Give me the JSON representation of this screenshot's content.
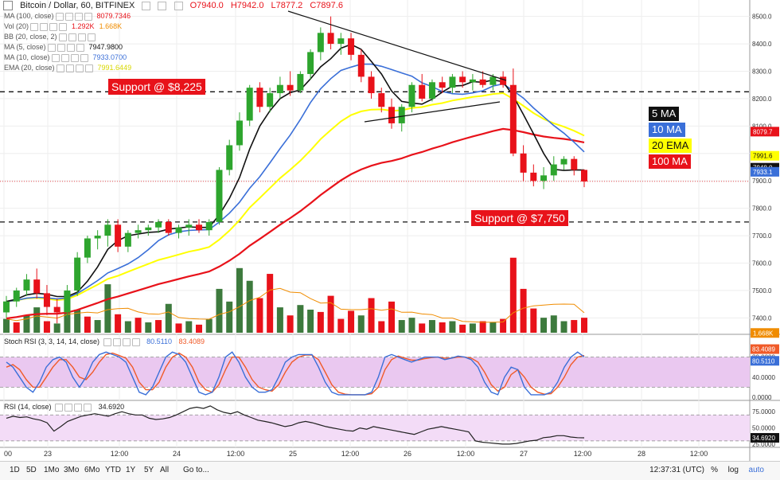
{
  "header": {
    "title": "Bitcoin / Dollar, 60, BITFINEX",
    "open": "O7940.0",
    "high": "H7942.0",
    "low": "L7877.2",
    "close": "C7897.6"
  },
  "indicators": [
    {
      "label": "MA (100, close)",
      "value": "8079.7346",
      "value2": "",
      "color": "#e8121a",
      "color2": ""
    },
    {
      "label": "Vol (20)",
      "value": "1.292K",
      "value2": "1.668K",
      "color": "#e8121a",
      "color2": "#f08c00"
    },
    {
      "label": "BB (20, close, 2)",
      "value": "",
      "value2": "",
      "color": "",
      "color2": ""
    },
    {
      "label": "MA (5, close)",
      "value": "7947.9800",
      "value2": "",
      "color": "#111111",
      "color2": ""
    },
    {
      "label": "MA (10, close)",
      "value": "7933.0700",
      "value2": "",
      "color": "#3a6fd8",
      "color2": ""
    },
    {
      "label": "EMA (20, close)",
      "value": "7991.6449",
      "value2": "",
      "color": "#d8d800",
      "color2": ""
    }
  ],
  "annotations": {
    "support_upper": "Support @ $8,225",
    "support_lower": "Support @ $7,750"
  },
  "legend": [
    {
      "label": "5 MA",
      "bg": "#111111",
      "fg": "#ffffff"
    },
    {
      "label": "10 MA",
      "bg": "#3a6fd8",
      "fg": "#ffffff"
    },
    {
      "label": "20 EMA",
      "bg": "#ffff00",
      "fg": "#111111"
    },
    {
      "label": "100 MA",
      "bg": "#e8121a",
      "fg": "#ffffff"
    }
  ],
  "price_axis": {
    "ticks": [
      "8500.0",
      "8400.0",
      "8300.0",
      "8200.0",
      "8100.0",
      "8000.0",
      "7900.0",
      "7800.0",
      "7700.0",
      "7600.0",
      "7500.0",
      "7400.0"
    ],
    "badges": [
      {
        "text": "8079.7",
        "price": 8079.7,
        "bg": "#e8121a",
        "fg": "#ffffff"
      },
      {
        "text": "7991.6",
        "price": 7991.6,
        "bg": "#ffff00",
        "fg": "#111111"
      },
      {
        "text": "7948.0",
        "price": 7948.0,
        "bg": "#111111",
        "fg": "#ffffff"
      },
      {
        "text": "7933.1",
        "price": 7933.1,
        "bg": "#3a6fd8",
        "fg": "#ffffff"
      },
      {
        "text": "1.668K",
        "price": 7345,
        "bg": "#f08c00",
        "fg": "#ffffff"
      }
    ]
  },
  "stoch_rsi": {
    "label": "Stoch RSI (3, 3, 14, 14, close)",
    "k": "80.5110",
    "d": "83.4089",
    "ticks": [
      "80.0000",
      "40.0000",
      "0.0000"
    ],
    "k_series": [
      70,
      60,
      40,
      20,
      10,
      30,
      60,
      75,
      80,
      70,
      40,
      20,
      40,
      70,
      85,
      90,
      85,
      80,
      70,
      40,
      10,
      5,
      20,
      50,
      80,
      90,
      85,
      70,
      40,
      10,
      5,
      10,
      40,
      80,
      90,
      70,
      40,
      20,
      10,
      10,
      15,
      40,
      70,
      80,
      85,
      85,
      85,
      60,
      30,
      10,
      5,
      5,
      5,
      5,
      5,
      10,
      40,
      80,
      85,
      80,
      75,
      70,
      75,
      80,
      80,
      80,
      75,
      78,
      82,
      80,
      75,
      60,
      30,
      10,
      5,
      40,
      60,
      55,
      20,
      5,
      5,
      5,
      10,
      30,
      60,
      80,
      90,
      80.5
    ],
    "d_series": [
      60,
      65,
      55,
      35,
      20,
      20,
      40,
      60,
      75,
      75,
      60,
      40,
      35,
      50,
      70,
      85,
      88,
      83,
      78,
      60,
      30,
      15,
      15,
      30,
      60,
      80,
      88,
      80,
      60,
      30,
      15,
      10,
      25,
      55,
      80,
      80,
      60,
      35,
      20,
      15,
      12,
      25,
      50,
      70,
      80,
      84,
      84,
      75,
      50,
      25,
      10,
      6,
      5,
      5,
      5,
      7,
      20,
      55,
      75,
      82,
      78,
      74,
      74,
      77,
      79,
      80,
      78,
      78,
      80,
      80,
      78,
      70,
      50,
      25,
      12,
      20,
      45,
      55,
      40,
      20,
      10,
      6,
      7,
      20,
      40,
      65,
      80,
      83.4
    ]
  },
  "rsi": {
    "label": "RSI (14, close)",
    "value": "34.6920",
    "ticks": [
      "75.0000",
      "50.0000",
      "34.6920",
      "25.0000"
    ],
    "series": [
      65,
      68,
      66,
      67,
      64,
      62,
      58,
      45,
      52,
      60,
      64,
      68,
      70,
      72,
      70,
      68,
      72,
      75,
      72,
      70,
      70,
      65,
      63,
      64,
      66,
      70,
      75,
      80,
      82,
      80,
      84,
      78,
      74,
      72,
      75,
      70,
      66,
      62,
      60,
      58,
      55,
      52,
      54,
      58,
      60,
      58,
      55,
      52,
      50,
      48,
      46,
      45,
      50,
      48,
      52,
      50,
      48,
      46,
      44,
      42,
      40,
      44,
      48,
      50,
      52,
      50,
      48,
      46,
      44,
      30,
      28,
      27,
      26,
      25,
      25,
      26,
      28,
      30,
      31,
      35,
      36,
      38,
      38,
      36,
      35,
      34.7
    ]
  },
  "time_axis": [
    "00",
    "23",
    "12:00",
    "24",
    "12:00",
    "25",
    "12:00",
    "26",
    "12:00",
    "27",
    "12:00",
    "28",
    "12:00"
  ],
  "bottom_bar": {
    "ranges": [
      "1D",
      "5D",
      "1Mo",
      "3Mo",
      "6Mo",
      "YTD",
      "1Y",
      "5Y",
      "All"
    ],
    "goto": "Go to...",
    "clock": "12:37:31 (UTC)",
    "pct": "%",
    "log": "log",
    "auto": "auto"
  },
  "colors": {
    "up": "#2ea52e",
    "down": "#e8121a",
    "ma5": "#111111",
    "ma10": "#3a6fd8",
    "ema20": "#ffff00",
    "ma100": "#e8121a",
    "vol_up": "#3d7a3d",
    "vol_down": "#e8121a",
    "stoch_k": "#3a6fd8",
    "stoch_d": "#f05a28",
    "stoch_fill": "#eac8f0",
    "rsi_fill": "#f3dcf7"
  },
  "chart_data": {
    "type": "candlestick",
    "title": "Bitcoin / Dollar, 60, BITFINEX",
    "ylim": [
      7340,
      8560
    ],
    "support_levels": [
      8225,
      7750
    ],
    "ohlc": [
      [
        7420,
        7480,
        7400,
        7460
      ],
      [
        7460,
        7510,
        7440,
        7500
      ],
      [
        7500,
        7560,
        7480,
        7540
      ],
      [
        7540,
        7580,
        7470,
        7490
      ],
      [
        7490,
        7520,
        7410,
        7440
      ],
      [
        7440,
        7470,
        7380,
        7420
      ],
      [
        7420,
        7520,
        7400,
        7500
      ],
      [
        7500,
        7640,
        7480,
        7620
      ],
      [
        7620,
        7700,
        7600,
        7690
      ],
      [
        7690,
        7720,
        7650,
        7700
      ],
      [
        7700,
        7760,
        7660,
        7740
      ],
      [
        7740,
        7760,
        7640,
        7660
      ],
      [
        7660,
        7720,
        7640,
        7710
      ],
      [
        7710,
        7740,
        7690,
        7720
      ],
      [
        7720,
        7740,
        7700,
        7730
      ],
      [
        7730,
        7760,
        7710,
        7750
      ],
      [
        7750,
        7760,
        7700,
        7710
      ],
      [
        7710,
        7740,
        7690,
        7730
      ],
      [
        7730,
        7760,
        7700,
        7740
      ],
      [
        7740,
        7760,
        7710,
        7720
      ],
      [
        7720,
        7760,
        7700,
        7750
      ],
      [
        7750,
        7950,
        7740,
        7940
      ],
      [
        7940,
        8050,
        7920,
        8030
      ],
      [
        8030,
        8150,
        8010,
        8120
      ],
      [
        8120,
        8250,
        8100,
        8240
      ],
      [
        8240,
        8260,
        8150,
        8170
      ],
      [
        8170,
        8240,
        8150,
        8220
      ],
      [
        8220,
        8280,
        8200,
        8250
      ],
      [
        8250,
        8300,
        8210,
        8230
      ],
      [
        8230,
        8300,
        8220,
        8290
      ],
      [
        8290,
        8380,
        8270,
        8370
      ],
      [
        8370,
        8460,
        8340,
        8440
      ],
      [
        8440,
        8500,
        8380,
        8400
      ],
      [
        8400,
        8440,
        8360,
        8420
      ],
      [
        8420,
        8440,
        8340,
        8360
      ],
      [
        8360,
        8380,
        8260,
        8280
      ],
      [
        8280,
        8300,
        8200,
        8220
      ],
      [
        8220,
        8240,
        8150,
        8170
      ],
      [
        8170,
        8200,
        8090,
        8110
      ],
      [
        8110,
        8180,
        8080,
        8170
      ],
      [
        8170,
        8260,
        8150,
        8250
      ],
      [
        8250,
        8290,
        8190,
        8200
      ],
      [
        8200,
        8270,
        8190,
        8260
      ],
      [
        8260,
        8280,
        8220,
        8240
      ],
      [
        8240,
        8290,
        8220,
        8280
      ],
      [
        8280,
        8300,
        8240,
        8260
      ],
      [
        8260,
        8290,
        8230,
        8270
      ],
      [
        8270,
        8300,
        8240,
        8250
      ],
      [
        8250,
        8290,
        8230,
        8280
      ],
      [
        8280,
        8300,
        8240,
        8250
      ],
      [
        8250,
        8310,
        7990,
        8000
      ],
      [
        8000,
        8030,
        7900,
        7930
      ],
      [
        7930,
        7960,
        7880,
        7900
      ],
      [
        7900,
        7950,
        7870,
        7920
      ],
      [
        7920,
        7990,
        7900,
        7960
      ],
      [
        7960,
        7990,
        7940,
        7980
      ],
      [
        7980,
        7990,
        7920,
        7940
      ],
      [
        7940,
        7942,
        7877,
        7898
      ]
    ],
    "volume": [
      [
        1.2,
        "u"
      ],
      [
        0.9,
        "d"
      ],
      [
        1.5,
        "u"
      ],
      [
        2.2,
        "u"
      ],
      [
        1.0,
        "d"
      ],
      [
        0.8,
        "u"
      ],
      [
        3.5,
        "u"
      ],
      [
        2.0,
        "u"
      ],
      [
        1.4,
        "d"
      ],
      [
        1.1,
        "u"
      ],
      [
        4.2,
        "u"
      ],
      [
        1.6,
        "d"
      ],
      [
        1.0,
        "u"
      ],
      [
        1.3,
        "d"
      ],
      [
        0.9,
        "u"
      ],
      [
        1.1,
        "d"
      ],
      [
        2.5,
        "u"
      ],
      [
        0.8,
        "d"
      ],
      [
        1.0,
        "u"
      ],
      [
        0.7,
        "d"
      ],
      [
        1.2,
        "u"
      ],
      [
        3.8,
        "u"
      ],
      [
        2.7,
        "u"
      ],
      [
        5.6,
        "u"
      ],
      [
        4.5,
        "u"
      ],
      [
        3.0,
        "d"
      ],
      [
        5.1,
        "d"
      ],
      [
        2.2,
        "u"
      ],
      [
        1.5,
        "d"
      ],
      [
        2.4,
        "u"
      ],
      [
        2.0,
        "u"
      ],
      [
        1.8,
        "d"
      ],
      [
        3.2,
        "d"
      ],
      [
        1.2,
        "d"
      ],
      [
        1.9,
        "d"
      ],
      [
        1.5,
        "u"
      ],
      [
        3.0,
        "d"
      ],
      [
        1.0,
        "d"
      ],
      [
        2.7,
        "d"
      ],
      [
        1.1,
        "u"
      ],
      [
        1.3,
        "u"
      ],
      [
        0.8,
        "d"
      ],
      [
        1.1,
        "u"
      ],
      [
        0.9,
        "d"
      ],
      [
        1.0,
        "u"
      ],
      [
        0.7,
        "d"
      ],
      [
        0.8,
        "u"
      ],
      [
        1.0,
        "d"
      ],
      [
        0.9,
        "u"
      ],
      [
        1.2,
        "d"
      ],
      [
        6.5,
        "d"
      ],
      [
        3.8,
        "d"
      ],
      [
        2.1,
        "d"
      ],
      [
        1.3,
        "u"
      ],
      [
        1.5,
        "u"
      ],
      [
        1.0,
        "u"
      ],
      [
        1.1,
        "d"
      ],
      [
        1.3,
        "d"
      ]
    ]
  }
}
